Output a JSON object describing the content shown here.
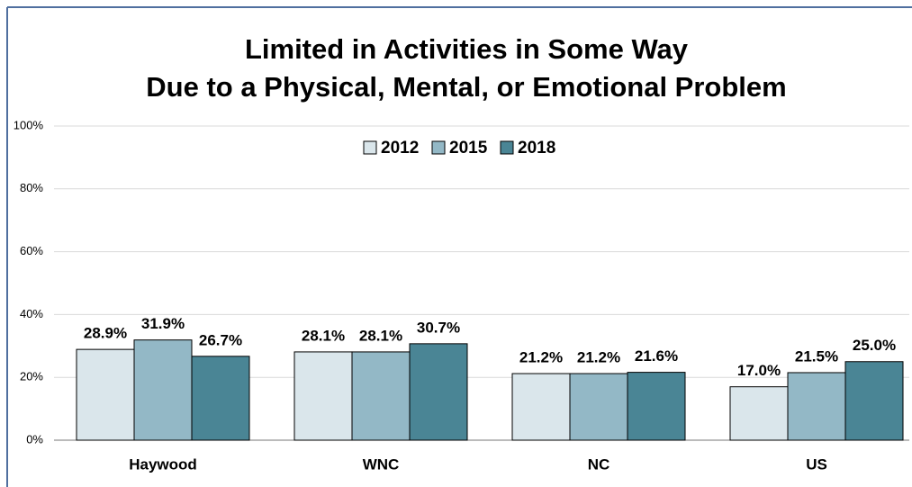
{
  "chart_data": {
    "type": "bar",
    "title": [
      "Limited in Activities in Some Way",
      "Due to a Physical, Mental, or Emotional Problem"
    ],
    "categories": [
      "Haywood",
      "WNC",
      "NC",
      "US"
    ],
    "series": [
      {
        "name": "2012",
        "color": "#dae6eb",
        "values": [
          28.9,
          28.1,
          21.2,
          17.0
        ],
        "value_labels": [
          "28.9%",
          "28.1%",
          "21.2%",
          "17.0%"
        ]
      },
      {
        "name": "2015",
        "color": "#93b8c6",
        "values": [
          31.9,
          28.1,
          21.2,
          21.5
        ],
        "value_labels": [
          "31.9%",
          "28.1%",
          "21.2%",
          "21.5%"
        ]
      },
      {
        "name": "2018",
        "color": "#4a8595",
        "values": [
          26.7,
          30.7,
          21.6,
          25.0
        ],
        "value_labels": [
          "26.7%",
          "30.7%",
          "21.6%",
          "25.0%"
        ]
      }
    ],
    "ylim": [
      0,
      100
    ],
    "yticks": [
      {
        "value": 0,
        "label": "0%"
      },
      {
        "value": 20,
        "label": "20%"
      },
      {
        "value": 40,
        "label": "40%"
      },
      {
        "value": 60,
        "label": "60%"
      },
      {
        "value": 80,
        "label": "80%"
      },
      {
        "value": 100,
        "label": "100%"
      }
    ],
    "grid": true
  }
}
